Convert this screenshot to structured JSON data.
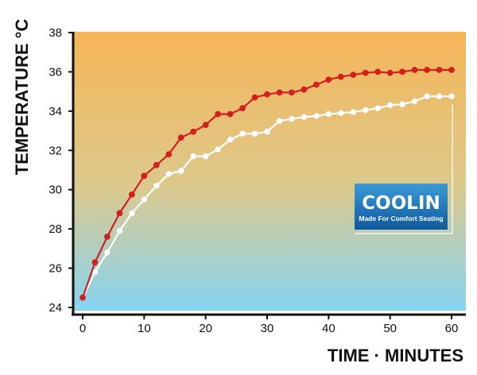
{
  "chart_data": {
    "type": "line",
    "xlabel": "TIME · MINUTES",
    "ylabel": "TEMPERATURE °C",
    "xlim": [
      0,
      60
    ],
    "ylim": [
      24,
      38
    ],
    "x_ticks": [
      0,
      10,
      20,
      30,
      40,
      50,
      60
    ],
    "y_ticks": [
      24,
      26,
      28,
      30,
      32,
      34,
      36,
      38
    ],
    "grid": false,
    "background": "vertical gradient from orange (top) to light blue (bottom)",
    "x": [
      0,
      2,
      4,
      6,
      8,
      10,
      12,
      14,
      16,
      18,
      20,
      22,
      24,
      26,
      28,
      30,
      32,
      34,
      36,
      38,
      40,
      42,
      44,
      46,
      48,
      50,
      52,
      54,
      56,
      58,
      60
    ],
    "series": [
      {
        "color": "#d41f1f",
        "values": [
          24.5,
          26.3,
          27.6,
          28.8,
          29.75,
          30.7,
          31.25,
          31.8,
          32.65,
          32.95,
          33.3,
          33.85,
          33.85,
          34.15,
          34.7,
          34.85,
          34.95,
          34.95,
          35.1,
          35.35,
          35.6,
          35.75,
          35.85,
          35.95,
          36.0,
          35.95,
          36.0,
          36.1,
          36.1,
          36.1,
          36.1
        ]
      },
      {
        "color": "#ffffff",
        "values": [
          24.5,
          25.8,
          26.8,
          27.9,
          28.8,
          29.5,
          30.2,
          30.8,
          30.95,
          31.7,
          31.7,
          32.05,
          32.55,
          32.85,
          32.85,
          32.95,
          33.5,
          33.6,
          33.7,
          33.75,
          33.85,
          33.9,
          33.95,
          34.05,
          34.15,
          34.3,
          34.35,
          34.5,
          34.75,
          34.75,
          34.75
        ]
      }
    ],
    "colors": {
      "bg_top": "#f6b558",
      "bg_mid": "#dcc98c",
      "bg_bottom": "#86d4f2",
      "axis": "#111111",
      "logo_bg": "#1a72b9"
    }
  },
  "logo": {
    "name": "COOLIN",
    "tagline": "Made For Comfort Seating"
  }
}
